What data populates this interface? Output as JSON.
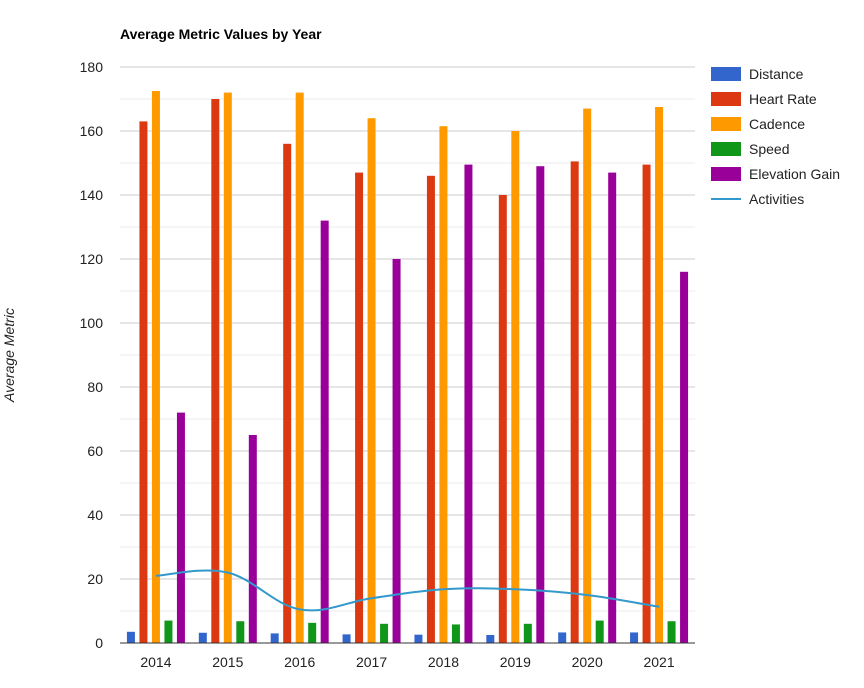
{
  "chart_data": {
    "type": "bar",
    "title": "Average Metric Values by Year",
    "xlabel": "",
    "ylabel": "Average Metric",
    "ylim": [
      0,
      180
    ],
    "yticks": [
      0,
      20,
      40,
      60,
      80,
      100,
      120,
      140,
      160,
      180
    ],
    "grid": true,
    "legend_position": "right",
    "categories": [
      "2014",
      "2015",
      "2016",
      "2017",
      "2018",
      "2019",
      "2020",
      "2021"
    ],
    "series": [
      {
        "name": "Distance",
        "kind": "bar",
        "color": "#3366cc",
        "values": [
          3.5,
          3.2,
          3,
          2.7,
          2.6,
          2.5,
          3.3,
          3.3
        ]
      },
      {
        "name": "Heart Rate",
        "kind": "bar",
        "color": "#dc3912",
        "values": [
          163,
          170,
          156,
          147,
          146,
          140,
          150.5,
          149.5
        ]
      },
      {
        "name": "Cadence",
        "kind": "bar",
        "color": "#ff9900",
        "values": [
          172.5,
          172,
          172,
          164,
          161.5,
          160,
          167,
          167.5
        ]
      },
      {
        "name": "Speed",
        "kind": "bar",
        "color": "#109618",
        "values": [
          7,
          6.8,
          6.3,
          6,
          5.8,
          6,
          7,
          6.8
        ]
      },
      {
        "name": "Elevation Gain",
        "kind": "bar",
        "color": "#990099",
        "values": [
          72,
          65,
          132,
          120,
          149.5,
          149,
          147,
          116
        ]
      },
      {
        "name": "Activities",
        "kind": "line",
        "color": "#3399cc",
        "values": [
          21,
          22,
          10.5,
          14,
          16.8,
          16.8,
          15,
          11.3
        ]
      }
    ]
  }
}
